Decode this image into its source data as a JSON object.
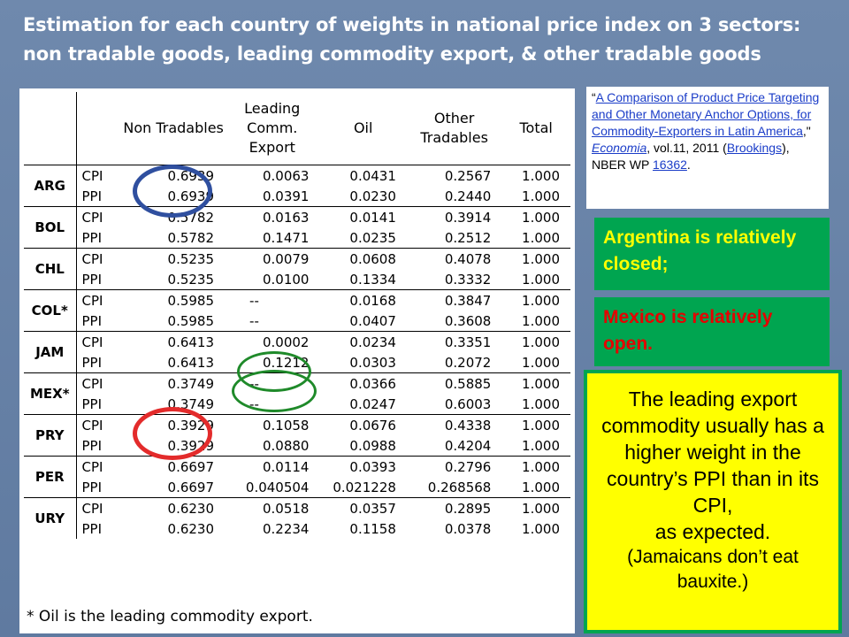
{
  "title": "Estimation for each country of weights in national price index on 3 sectors: non tradable goods, leading commodity export, & other tradable goods",
  "table": {
    "headers": [
      "Non Tradables",
      "Leading Comm. Export",
      "Oil",
      "Other Tradables",
      "Total"
    ],
    "rows": [
      {
        "country": "ARG",
        "type": "CPI",
        "v": [
          "0.6939",
          "0.0063",
          "0.0431",
          "0.2567",
          "1.000"
        ]
      },
      {
        "country": "ARG",
        "type": "PPI",
        "v": [
          "0.6939",
          "0.0391",
          "0.0230",
          "0.2440",
          "1.000"
        ]
      },
      {
        "country": "BOL",
        "type": "CPI",
        "v": [
          "0.5782",
          "0.0163",
          "0.0141",
          "0.3914",
          "1.000"
        ]
      },
      {
        "country": "BOL",
        "type": "PPI",
        "v": [
          "0.5782",
          "0.1471",
          "0.0235",
          "0.2512",
          "1.000"
        ]
      },
      {
        "country": "CHL",
        "type": "CPI",
        "v": [
          "0.5235",
          "0.0079",
          "0.0608",
          "0.4078",
          "1.000"
        ]
      },
      {
        "country": "CHL",
        "type": "PPI",
        "v": [
          "0.5235",
          "0.0100",
          "0.1334",
          "0.3332",
          "1.000"
        ]
      },
      {
        "country": "COL*",
        "type": "CPI",
        "v": [
          "0.5985",
          "--",
          "0.0168",
          "0.3847",
          "1.000"
        ]
      },
      {
        "country": "COL*",
        "type": "PPI",
        "v": [
          "0.5985",
          "--",
          "0.0407",
          "0.3608",
          "1.000"
        ]
      },
      {
        "country": "JAM",
        "type": "CPI",
        "v": [
          "0.6413",
          "0.0002",
          "0.0234",
          "0.3351",
          "1.000"
        ]
      },
      {
        "country": "JAM",
        "type": "PPI",
        "v": [
          "0.6413",
          "0.1212",
          "0.0303",
          "0.2072",
          "1.000"
        ]
      },
      {
        "country": "MEX*",
        "type": "CPI",
        "v": [
          "0.3749",
          "--",
          "0.0366",
          "0.5885",
          "1.000"
        ]
      },
      {
        "country": "MEX*",
        "type": "PPI",
        "v": [
          "0.3749",
          "--",
          "0.0247",
          "0.6003",
          "1.000"
        ]
      },
      {
        "country": "PRY",
        "type": "CPI",
        "v": [
          "0.3929",
          "0.1058",
          "0.0676",
          "0.4338",
          "1.000"
        ]
      },
      {
        "country": "PRY",
        "type": "PPI",
        "v": [
          "0.3929",
          "0.0880",
          "0.0988",
          "0.4204",
          "1.000"
        ]
      },
      {
        "country": "PER",
        "type": "CPI",
        "v": [
          "0.6697",
          "0.0114",
          "0.0393",
          "0.2796",
          "1.000"
        ]
      },
      {
        "country": "PER",
        "type": "PPI",
        "v": [
          "0.6697",
          "0.040504",
          "0.021228",
          "0.268568",
          "1.000"
        ]
      },
      {
        "country": "URY",
        "type": "CPI",
        "v": [
          "0.6230",
          "0.0518",
          "0.0357",
          "0.2895",
          "1.000"
        ]
      },
      {
        "country": "URY",
        "type": "PPI",
        "v": [
          "0.6230",
          "0.2234",
          "0.1158",
          "0.0378",
          "1.000"
        ]
      }
    ],
    "footnote": "* Oil is the leading commodity export."
  },
  "reference": {
    "open_quote": "“",
    "link_title": "A Comparison of Product Price Targeting and Other Monetary Anchor Options, for Commodity-Exporters in Latin America",
    "after_title": ",\" ",
    "journal": "Economia",
    "volume": ", vol.11, 2011",
    "open_paren": " (",
    "brookings": "Brookings",
    "nber": "), NBER WP ",
    "wp": "16362",
    "end": "."
  },
  "notes": {
    "argentina": "Argentina is relatively closed;",
    "mexico": "Mexico is relatively open.",
    "lead_main": "The leading export commodity usually has a higher weight in the country’s PPI than in its CPI,",
    "lead_expected": "as expected.",
    "lead_paren": "(Jamaicans don’t eat bauxite.)"
  },
  "colors": {
    "background": "#6f89ad",
    "green": "#00a550",
    "yellow": "#ffff00",
    "red_circle": "#e32b2b",
    "blue_circle": "#2f4f9f",
    "green_circle": "#1f8a2a",
    "link": "#1a3cc8"
  }
}
